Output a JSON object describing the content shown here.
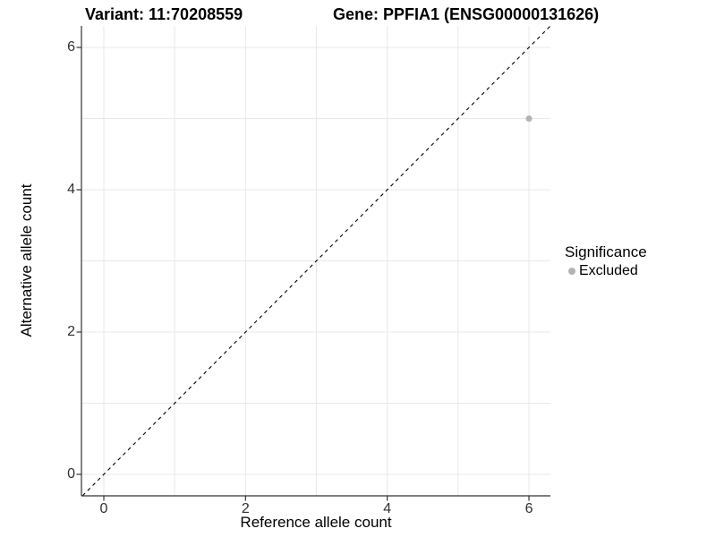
{
  "chart_data": {
    "type": "scatter",
    "title_left": "Variant: 11:70208559",
    "title_right": "Gene: PPFIA1 (ENSG00000131626)",
    "xlabel": "Reference allele count",
    "ylabel": "Alternative allele count",
    "xlim": [
      -0.3,
      6.3
    ],
    "ylim": [
      -0.3,
      6.3
    ],
    "x_ticks": [
      0,
      2,
      4,
      6
    ],
    "y_ticks": [
      0,
      2,
      4,
      6
    ],
    "grid_positions": [
      0,
      1,
      2,
      3,
      4,
      5,
      6
    ],
    "grid_on": true,
    "identity_line": {
      "style": "dashed",
      "from": [
        -0.3,
        -0.3
      ],
      "to": [
        6.3,
        6.3
      ]
    },
    "points": [
      {
        "x": 6,
        "y": 5,
        "significance": "Excluded"
      }
    ],
    "legend": {
      "title": "Significance",
      "position": "right",
      "items": [
        {
          "label": "Excluded",
          "color": "#b3b3b3"
        }
      ]
    }
  },
  "colors": {
    "background": "#ffffff",
    "grid": "#e8e8e8",
    "axis": "#333333",
    "dashed_line": "#000000",
    "point_excluded": "#b3b3b3",
    "tick_label": "#303030"
  }
}
